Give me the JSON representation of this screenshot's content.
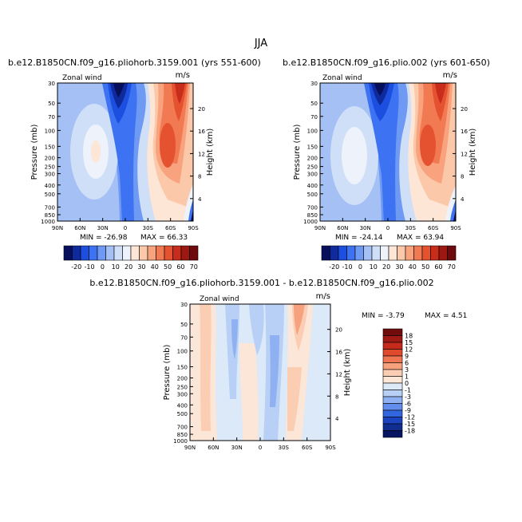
{
  "title": "JJA",
  "chart_data": [
    {
      "type": "heatmap",
      "panel": "left",
      "title": "b.e12.B1850CN.f09_g16.pliohorb.3159.001 (yrs 551-600)",
      "variable": "Zonal wind",
      "units": "m/s",
      "ylabel": "Pressure (mb)",
      "ylabel_right": "Height (km)",
      "x_ticks": [
        "90N",
        "60N",
        "30N",
        "0",
        "30S",
        "60S",
        "90S"
      ],
      "y_ticks": [
        "30",
        "50",
        "70",
        "100",
        "150",
        "200",
        "250",
        "300",
        "400",
        "500",
        "700",
        "850",
        "1000"
      ],
      "height_ticks": [
        "4",
        "8",
        "12",
        "16",
        "20"
      ],
      "min_label": "MIN = -26.98",
      "max_label": "MAX =  66.33",
      "min": -26.98,
      "max": 66.33,
      "colorbar_labels": [
        "-20",
        "-10",
        "0",
        "10",
        "20",
        "30",
        "40",
        "50",
        "60",
        "70"
      ]
    },
    {
      "type": "heatmap",
      "panel": "right",
      "title": "b.e12.B1850CN.f09_g16.plio.002 (yrs 601-650)",
      "variable": "Zonal wind",
      "units": "m/s",
      "ylabel": "Pressure (mb)",
      "ylabel_right": "Height (km)",
      "x_ticks": [
        "90N",
        "60N",
        "30N",
        "0",
        "30S",
        "60S",
        "90S"
      ],
      "y_ticks": [
        "30",
        "50",
        "70",
        "100",
        "150",
        "200",
        "250",
        "300",
        "400",
        "500",
        "700",
        "850",
        "1000"
      ],
      "height_ticks": [
        "4",
        "8",
        "12",
        "16",
        "20"
      ],
      "min_label": "MIN = -24.14",
      "max_label": "MAX =  63.94",
      "min": -24.14,
      "max": 63.94,
      "colorbar_labels": [
        "-20",
        "-10",
        "0",
        "10",
        "20",
        "30",
        "40",
        "50",
        "60",
        "70"
      ]
    },
    {
      "type": "heatmap",
      "panel": "difference",
      "title": "b.e12.B1850CN.f09_g16.pliohorb.3159.001 - b.e12.B1850CN.f09_g16.plio.002",
      "variable": "Zonal wind",
      "units": "m/s",
      "ylabel": "Pressure (mb)",
      "ylabel_right": "Height (km)",
      "x_ticks": [
        "90N",
        "60N",
        "30N",
        "0",
        "30S",
        "60S",
        "90S"
      ],
      "y_ticks": [
        "30",
        "50",
        "70",
        "100",
        "150",
        "200",
        "250",
        "300",
        "400",
        "500",
        "700",
        "850",
        "1000"
      ],
      "height_ticks": [
        "4",
        "8",
        "12",
        "16",
        "20"
      ],
      "min_label": "MIN =  -3.79",
      "max_label": "MAX =   4.51",
      "min": -3.79,
      "max": 4.51,
      "colorbar_labels": [
        "18",
        "15",
        "12",
        "9",
        "6",
        "3",
        "1",
        "0",
        "-1",
        "-3",
        "-6",
        "-9",
        "-12",
        "-15",
        "-18"
      ]
    }
  ],
  "colors": {
    "full_scale": [
      "#08105e",
      "#0e2a9c",
      "#1c4fe0",
      "#3d72f2",
      "#6f9af4",
      "#a4c0f4",
      "#cfdff8",
      "#edf2fb",
      "#fde6d6",
      "#fcc8aa",
      "#f8a37e",
      "#f27a53",
      "#e5522f",
      "#c82c1b",
      "#9c1811",
      "#6e0a0c"
    ],
    "diff_scale": [
      "#700d0c",
      "#9e1a12",
      "#c52b1c",
      "#df4a2c",
      "#ef7552",
      "#f7a27e",
      "#fbcdb2",
      "#fce6d8",
      "#dbe9f9",
      "#b8d0f5",
      "#8fb1f2",
      "#628ded",
      "#3266df",
      "#1d44c0",
      "#102d90",
      "#071663"
    ]
  }
}
